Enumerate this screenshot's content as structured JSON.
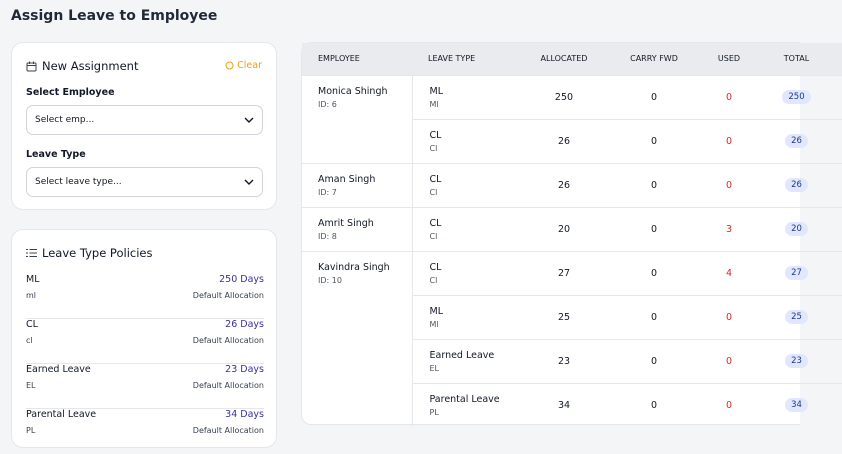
{
  "title": "Assign Leave to Employee",
  "assignment": {
    "title": "New Assignment",
    "clear": "Clear",
    "employee_label": "Select Employee",
    "employee_placeholder": "Select emp...",
    "leave_type_label": "Leave Type",
    "leave_type_placeholder": "Select leave type..."
  },
  "policies": {
    "title": "Leave Type Policies",
    "items": [
      {
        "name": "ML",
        "code": "ml",
        "days": "250 Days",
        "note": "Default Allocation"
      },
      {
        "name": "CL",
        "code": "cl",
        "days": "26 Days",
        "note": "Default Allocation"
      },
      {
        "name": "Earned Leave",
        "code": "EL",
        "days": "23 Days",
        "note": "Default Allocation"
      },
      {
        "name": "Parental Leave",
        "code": "PL",
        "days": "34 Days",
        "note": "Default Allocation"
      }
    ]
  },
  "table": {
    "headers": [
      "EMPLOYEE",
      "LEAVE TYPE",
      "ALLOCATED",
      "CARRY FWD",
      "USED",
      "TOTAL"
    ],
    "employees": [
      {
        "name": "Monica Shingh",
        "id": "ID: 6",
        "leaves": [
          {
            "type": "ML",
            "code": "Ml",
            "allocated": 250,
            "carry": 0,
            "used": 0,
            "total": 250
          },
          {
            "type": "CL",
            "code": "Cl",
            "allocated": 26,
            "carry": 0,
            "used": 0,
            "total": 26
          }
        ]
      },
      {
        "name": "Aman Singh",
        "id": "ID: 7",
        "leaves": [
          {
            "type": "CL",
            "code": "Cl",
            "allocated": 26,
            "carry": 0,
            "used": 0,
            "total": 26
          }
        ]
      },
      {
        "name": "Amrit Singh",
        "id": "ID: 8",
        "leaves": [
          {
            "type": "CL",
            "code": "Cl",
            "allocated": 20,
            "carry": 0,
            "used": 3,
            "total": 20
          }
        ]
      },
      {
        "name": "Kavindra Singh",
        "id": "ID: 10",
        "leaves": [
          {
            "type": "CL",
            "code": "Cl",
            "allocated": 27,
            "carry": 0,
            "used": 4,
            "total": 27
          },
          {
            "type": "ML",
            "code": "Ml",
            "allocated": 25,
            "carry": 0,
            "used": 0,
            "total": 25
          },
          {
            "type": "Earned Leave",
            "code": "EL",
            "allocated": 23,
            "carry": 0,
            "used": 0,
            "total": 23
          },
          {
            "type": "Parental Leave",
            "code": "PL",
            "allocated": 34,
            "carry": 0,
            "used": 0,
            "total": 34
          }
        ]
      }
    ]
  }
}
